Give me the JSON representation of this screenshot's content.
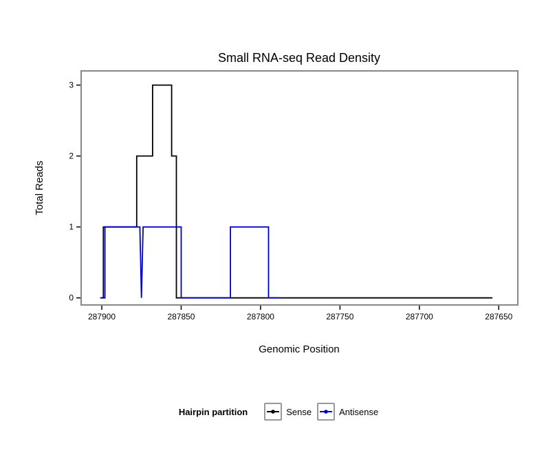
{
  "chart_data": {
    "type": "line",
    "subtype": "step",
    "title": "Small RNA-seq Read Density",
    "xlabel": "Genomic Position",
    "ylabel": "Total Reads",
    "x_domain": [
      287913,
      287638
    ],
    "y_domain": [
      -0.1,
      3.2
    ],
    "x_ticks": [
      287900,
      287850,
      287800,
      287750,
      287700,
      287650
    ],
    "y_ticks": [
      0,
      1,
      2,
      3
    ],
    "x_axis_reversed": true,
    "grid": true,
    "grid_color": "#ebebeb",
    "panel_border_color": "#878787",
    "series": [
      {
        "name": "Sense",
        "color": "#000000",
        "points": [
          [
            287901,
            0
          ],
          [
            287899,
            0
          ],
          [
            287899,
            1
          ],
          [
            287878,
            1
          ],
          [
            287878,
            2
          ],
          [
            287868,
            2
          ],
          [
            287868,
            3
          ],
          [
            287856,
            3
          ],
          [
            287856,
            2
          ],
          [
            287853,
            2
          ],
          [
            287853,
            0
          ],
          [
            287654,
            0
          ]
        ]
      },
      {
        "name": "Antisense",
        "color": "#0000cc",
        "points": [
          [
            287900,
            0
          ],
          [
            287898,
            0
          ],
          [
            287898,
            1
          ],
          [
            287876,
            1
          ],
          [
            287875,
            0
          ],
          [
            287874,
            1
          ],
          [
            287850,
            1
          ],
          [
            287850,
            0
          ],
          [
            287819,
            0
          ],
          [
            287819,
            1
          ],
          [
            287795,
            1
          ],
          [
            287795,
            0
          ],
          [
            287788,
            0
          ]
        ]
      }
    ],
    "legend": {
      "title": "Hairpin partition",
      "position": "bottom",
      "entries": [
        {
          "label": "Sense",
          "color": "#000000"
        },
        {
          "label": "Antisense",
          "color": "#0000cc"
        }
      ]
    }
  }
}
